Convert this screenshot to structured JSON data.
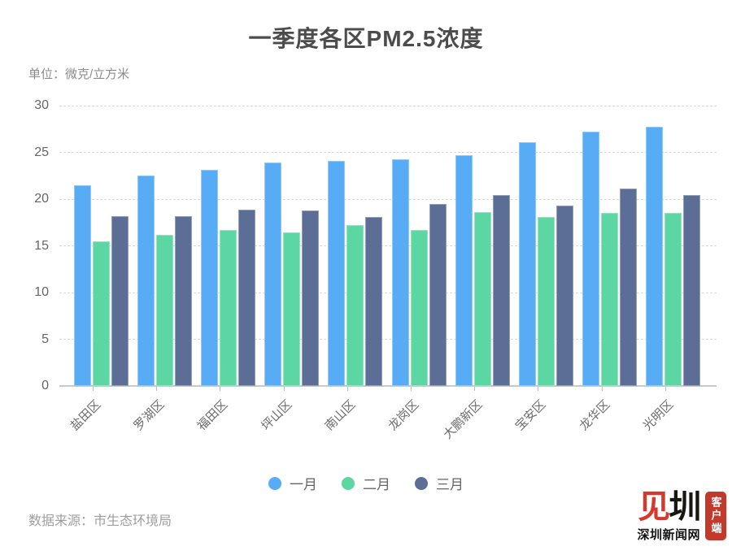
{
  "header": {
    "title": "一季度各区PM2.5浓度",
    "unit_label": "单位：微克/立方米"
  },
  "chart_data": {
    "type": "bar",
    "title": "一季度各区PM2.5浓度",
    "unit": "微克/立方米",
    "categories": [
      "盐田区",
      "罗湖区",
      "福田区",
      "坪山区",
      "南山区",
      "龙岗区",
      "大鹏新区",
      "宝安区",
      "龙华区",
      "光明区"
    ],
    "series": [
      {
        "name": "一月",
        "color": "#57acf5",
        "values": [
          21.5,
          22.5,
          23.1,
          23.9,
          24.1,
          24.3,
          24.7,
          26.1,
          27.2,
          27.7
        ]
      },
      {
        "name": "二月",
        "color": "#5cd6a2",
        "values": [
          15.5,
          16.2,
          16.7,
          16.4,
          17.2,
          16.7,
          18.6,
          18.1,
          18.5,
          18.5
        ]
      },
      {
        "name": "三月",
        "color": "#5d6e96",
        "values": [
          18.2,
          18.2,
          18.9,
          18.8,
          18.1,
          19.5,
          20.4,
          19.3,
          21.1,
          20.4
        ]
      }
    ],
    "ylim": [
      0,
      30
    ],
    "yticks": [
      0,
      5,
      10,
      15,
      20,
      25,
      30
    ],
    "grid": true,
    "grid_style": "dashed",
    "legend_position": "bottom",
    "legend_marker": "circle",
    "xlabel_rotation": -45
  },
  "footer": {
    "source": "数据来源：市生态环境局",
    "logo": {
      "mark_red": "见",
      "mark_black": "圳",
      "site_name": "深圳新闻网",
      "seal_text": "客户端",
      "brand_red": "#d6382b",
      "seal_red": "#c13a2b"
    }
  }
}
